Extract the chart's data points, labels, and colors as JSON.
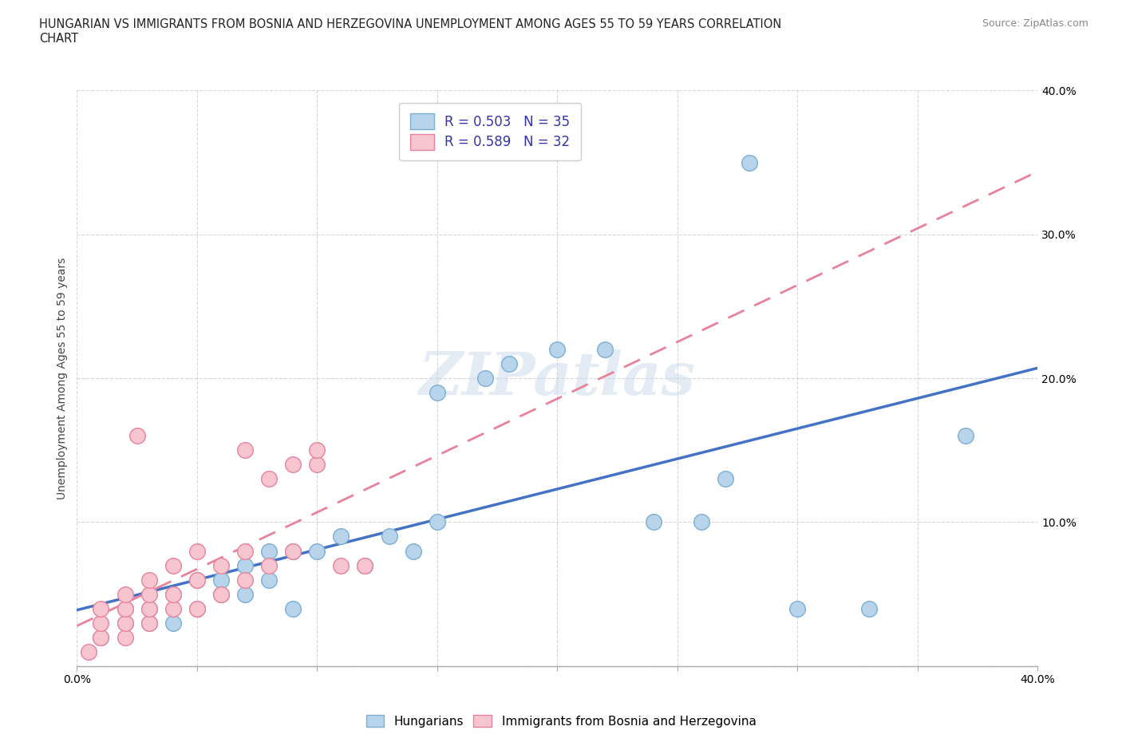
{
  "title": "HUNGARIAN VS IMMIGRANTS FROM BOSNIA AND HERZEGOVINA UNEMPLOYMENT AMONG AGES 55 TO 59 YEARS CORRELATION\nCHART",
  "source": "Source: ZipAtlas.com",
  "ylabel": "Unemployment Among Ages 55 to 59 years",
  "xlim": [
    0.0,
    0.4
  ],
  "ylim": [
    0.0,
    0.4
  ],
  "R_hungarian": 0.503,
  "N_hungarian": 35,
  "R_bosnian": 0.589,
  "N_bosnian": 32,
  "watermark": "ZIPatlas",
  "background_color": "#ffffff",
  "grid_color": "#cccccc",
  "hungarian_face_color": "#b8d4ea",
  "hungarian_edge_color": "#7bafd4",
  "bosnian_face_color": "#f7c5d0",
  "bosnian_edge_color": "#e8829a",
  "hungarian_line_color": "#4472c4",
  "bosnian_line_color": "#e8829a",
  "hungarian_scatter": [
    [
      0.01,
      0.02
    ],
    [
      0.02,
      0.03
    ],
    [
      0.02,
      0.04
    ],
    [
      0.03,
      0.03
    ],
    [
      0.03,
      0.04
    ],
    [
      0.04,
      0.03
    ],
    [
      0.04,
      0.05
    ],
    [
      0.05,
      0.04
    ],
    [
      0.05,
      0.06
    ],
    [
      0.06,
      0.05
    ],
    [
      0.06,
      0.06
    ],
    [
      0.07,
      0.05
    ],
    [
      0.07,
      0.07
    ],
    [
      0.08,
      0.06
    ],
    [
      0.08,
      0.08
    ],
    [
      0.09,
      0.04
    ],
    [
      0.09,
      0.08
    ],
    [
      0.1,
      0.08
    ],
    [
      0.11,
      0.09
    ],
    [
      0.12,
      0.07
    ],
    [
      0.13,
      0.09
    ],
    [
      0.14,
      0.08
    ],
    [
      0.15,
      0.1
    ],
    [
      0.15,
      0.19
    ],
    [
      0.17,
      0.2
    ],
    [
      0.18,
      0.21
    ],
    [
      0.2,
      0.22
    ],
    [
      0.22,
      0.22
    ],
    [
      0.24,
      0.1
    ],
    [
      0.26,
      0.1
    ],
    [
      0.27,
      0.13
    ],
    [
      0.28,
      0.35
    ],
    [
      0.3,
      0.04
    ],
    [
      0.33,
      0.04
    ],
    [
      0.37,
      0.16
    ]
  ],
  "bosnian_scatter": [
    [
      0.005,
      0.01
    ],
    [
      0.01,
      0.02
    ],
    [
      0.01,
      0.03
    ],
    [
      0.01,
      0.04
    ],
    [
      0.02,
      0.02
    ],
    [
      0.02,
      0.03
    ],
    [
      0.02,
      0.04
    ],
    [
      0.02,
      0.05
    ],
    [
      0.03,
      0.03
    ],
    [
      0.03,
      0.04
    ],
    [
      0.03,
      0.05
    ],
    [
      0.03,
      0.06
    ],
    [
      0.04,
      0.04
    ],
    [
      0.04,
      0.05
    ],
    [
      0.04,
      0.07
    ],
    [
      0.05,
      0.04
    ],
    [
      0.05,
      0.06
    ],
    [
      0.05,
      0.08
    ],
    [
      0.06,
      0.05
    ],
    [
      0.06,
      0.07
    ],
    [
      0.07,
      0.06
    ],
    [
      0.07,
      0.08
    ],
    [
      0.07,
      0.15
    ],
    [
      0.08,
      0.07
    ],
    [
      0.08,
      0.13
    ],
    [
      0.09,
      0.08
    ],
    [
      0.09,
      0.14
    ],
    [
      0.1,
      0.14
    ],
    [
      0.1,
      0.15
    ],
    [
      0.11,
      0.07
    ],
    [
      0.12,
      0.07
    ],
    [
      0.025,
      0.16
    ]
  ]
}
